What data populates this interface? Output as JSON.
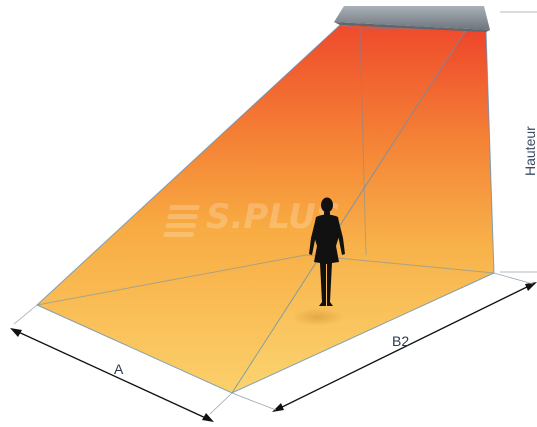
{
  "labels": {
    "width_a": "A",
    "depth_b2": "B2",
    "height": "Hauteur"
  },
  "watermark": {
    "brand": "S.PLUS"
  },
  "colors": {
    "heat_top": "#ef4a2c",
    "heat_mid": "#f7a63a",
    "heat_floor": "#fbd473",
    "edge_line": "#5b8db8",
    "heater_body": "#8e969e",
    "person": "#111111",
    "dimension_line": "#111111"
  },
  "icons": {
    "heater": "heater-unit-icon",
    "person": "person-silhouette-icon",
    "watermark": "brand-logo-icon"
  }
}
